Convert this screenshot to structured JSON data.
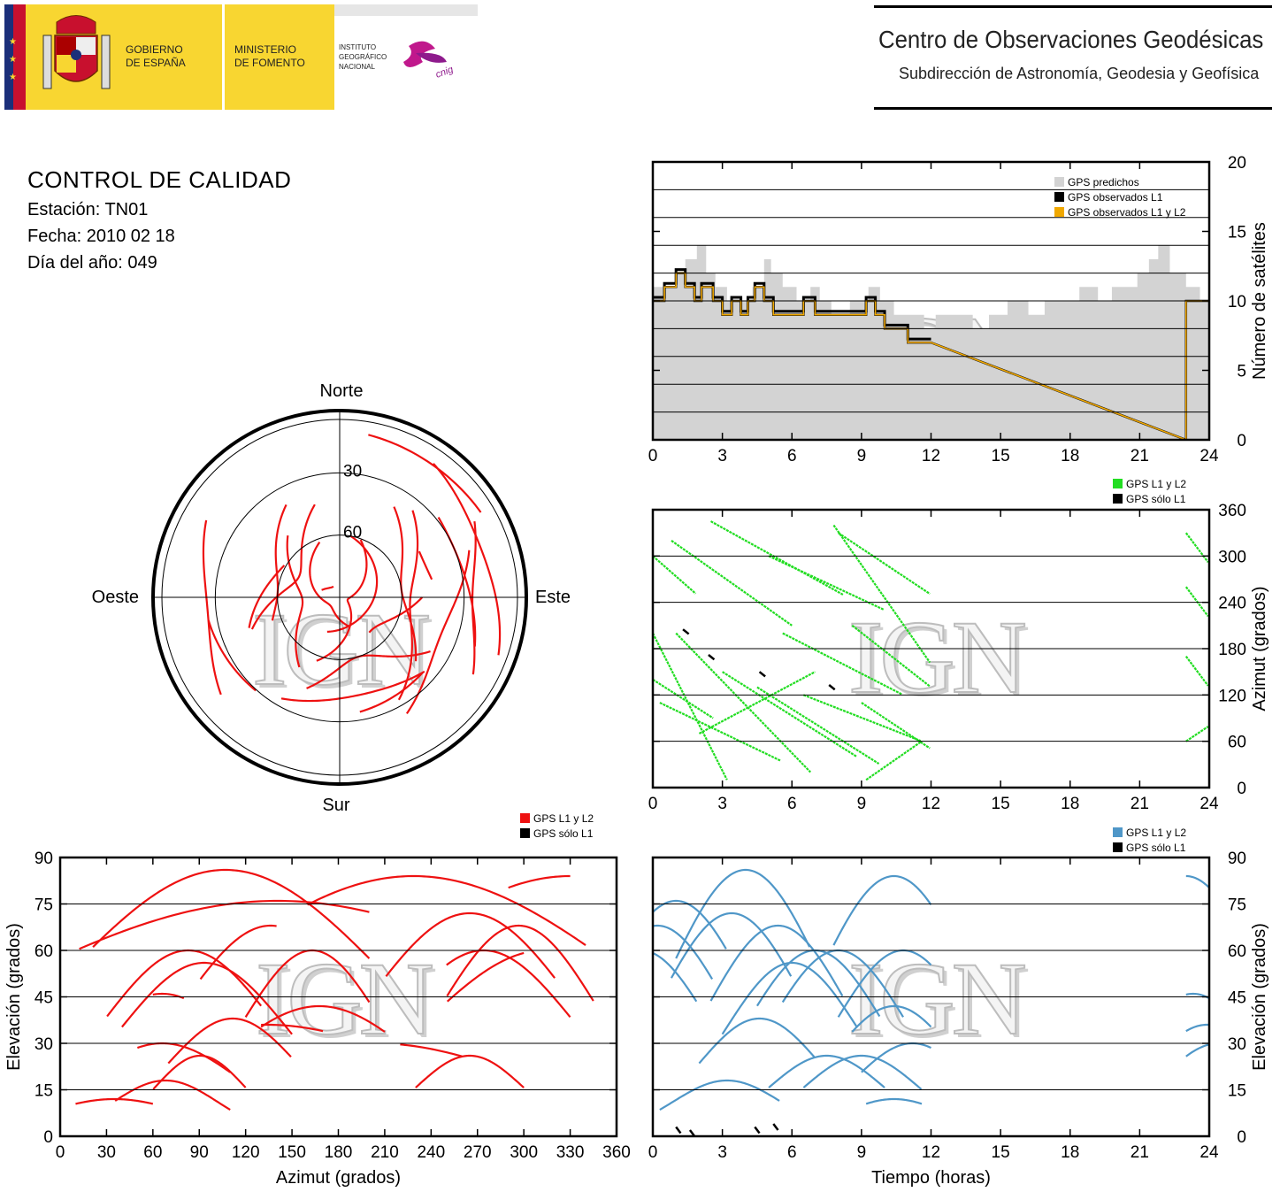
{
  "header": {
    "gov_line1": "GOBIERNO",
    "gov_line2": "DE ESPAÑA",
    "min_line1": "MINISTERIO",
    "min_line2": "DE FOMENTO",
    "ign_line1": "INSTITUTO",
    "ign_line2": "GEOGRÁFICO",
    "ign_line3": "NACIONAL",
    "cnig": "cnig",
    "centro_title": "Centro de Observaciones Geodésicas",
    "centro_subtitle": "Subdirección de Astronomía, Geodesia y Geofísica"
  },
  "info": {
    "title": "CONTROL DE CALIDAD",
    "station": "Estación: TN01",
    "date": "Fecha: 2010 02 18",
    "doy": "Día del año: 049"
  },
  "watermark": "IGN",
  "colors": {
    "yellow": "#f8d631",
    "red_track": "#ee1111",
    "green_track": "#22dd22",
    "blue_track": "#4f97c8",
    "predicted_gray": "#d3d3d3",
    "orange": "#f0a800"
  },
  "chart_data": [
    {
      "id": "sat-count",
      "type": "area",
      "ylabel": "Número de satélites",
      "xlim": [
        0,
        24
      ],
      "ylim": [
        0,
        20
      ],
      "xticks": [
        0,
        3,
        6,
        9,
        12,
        15,
        18,
        21,
        24
      ],
      "yticks": [
        0,
        5,
        10,
        15,
        20
      ],
      "grid": true,
      "legend": [
        "GPS predichos",
        "GPS observados L1",
        "GPS observados L1 y L2"
      ],
      "legend_position": "top-right",
      "predicted": {
        "x": [
          0,
          1,
          1.4,
          1.9,
          2.3,
          2.7,
          3.2,
          4.1,
          4.3,
          4.8,
          5.1,
          5.6,
          6.2,
          6.8,
          7.2,
          7.7,
          8.5,
          9.3,
          9.8,
          10.4,
          11.1,
          11.7,
          12.2,
          13.1,
          13.8,
          14.5,
          15.3,
          16.2,
          16.9,
          17.7,
          18.4,
          19.2,
          19.8,
          20.4,
          20.9,
          21.4,
          21.8,
          22.3,
          23.0,
          23.6,
          24.0
        ],
        "y": [
          11,
          12,
          13,
          14,
          12,
          11,
          10,
          10,
          11,
          13,
          12,
          11,
          10,
          11,
          10,
          9,
          10,
          11,
          10,
          9,
          9,
          8,
          9,
          9,
          8,
          9,
          10,
          9,
          10,
          10,
          11,
          10,
          11,
          11,
          12,
          13,
          14,
          12,
          11,
          10,
          10
        ]
      },
      "observed_L1L2": {
        "x": [
          0,
          0.5,
          1.0,
          1.4,
          1.8,
          2.1,
          2.6,
          3.0,
          3.4,
          3.8,
          4.1,
          4.4,
          4.8,
          5.2,
          5.6,
          6.0,
          6.5,
          7.0,
          7.6,
          8.2,
          8.8,
          9.2,
          9.6,
          10.0,
          10.5,
          11.0,
          11.5,
          12.0,
          23.0,
          23.0,
          24.0
        ],
        "y": [
          10,
          11,
          12,
          11,
          10,
          11,
          10,
          9,
          10,
          9,
          10,
          11,
          10,
          9,
          9,
          9,
          10,
          9,
          9,
          9,
          9,
          10,
          9,
          8,
          8,
          7,
          7,
          7,
          0,
          10,
          10
        ]
      }
    },
    {
      "id": "sky-plot",
      "type": "scatter",
      "projection": "polar",
      "direction_labels": {
        "north": "Norte",
        "south": "Sur",
        "east": "Este",
        "west": "Oeste"
      },
      "elevation_rings": [
        30,
        60
      ],
      "legend": [
        "GPS L1 y L2",
        "GPS sólo L1"
      ],
      "legend_position": "bottom-right"
    },
    {
      "id": "azimuth-time",
      "type": "scatter",
      "ylabel": "Azimut (grados)",
      "xlim": [
        0,
        24
      ],
      "ylim": [
        0,
        360
      ],
      "xticks": [
        0,
        3,
        6,
        9,
        12,
        15,
        18,
        21,
        24
      ],
      "yticks": [
        0,
        60,
        120,
        180,
        240,
        300,
        360
      ],
      "grid": true,
      "legend": [
        "GPS L1 y L2",
        "GPS sólo L1"
      ],
      "legend_position": "top-right"
    },
    {
      "id": "elev-azimuth",
      "type": "scatter",
      "xlabel": "Azimut (grados)",
      "ylabel": "Elevación (grados)",
      "xlim": [
        0,
        360
      ],
      "ylim": [
        0,
        90
      ],
      "xticks": [
        0,
        30,
        60,
        90,
        120,
        150,
        180,
        210,
        240,
        270,
        300,
        330,
        360
      ],
      "yticks": [
        0,
        15,
        30,
        45,
        60,
        75,
        90
      ],
      "grid": true,
      "legend": [
        "GPS L1 y L2",
        "GPS sólo L1"
      ],
      "legend_position": "top-right"
    },
    {
      "id": "elev-time",
      "type": "scatter",
      "xlabel": "Tiempo (horas)",
      "ylabel": "Elevación (grados)",
      "xlim": [
        0,
        24
      ],
      "ylim": [
        0,
        90
      ],
      "xticks": [
        0,
        3,
        6,
        9,
        12,
        15,
        18,
        21,
        24
      ],
      "yticks": [
        0,
        15,
        30,
        45,
        60,
        75,
        90
      ],
      "grid": true,
      "legend": [
        "GPS L1 y L2",
        "GPS sólo L1"
      ],
      "legend_position": "top-right"
    }
  ],
  "satellites": [
    {
      "start": 0.0,
      "end": 3.2,
      "tmax": 1.0,
      "emax": 76,
      "az0": 200,
      "az1": 10
    },
    {
      "start": 0.0,
      "end": 2.6,
      "tmax": 0.2,
      "emax": 68,
      "az0": 140,
      "az1": 90
    },
    {
      "start": 0.0,
      "end": 1.9,
      "tmax": -0.5,
      "emax": 60,
      "az0": 300,
      "az1": 250
    },
    {
      "start": 0.3,
      "end": 5.5,
      "tmax": 3.2,
      "emax": 18,
      "az0": 110,
      "az1": 35
    },
    {
      "start": 0.8,
      "end": 6.0,
      "tmax": 3.4,
      "emax": 72,
      "az0": 320,
      "az1": 210
    },
    {
      "start": 1.0,
      "end": 6.8,
      "tmax": 4.0,
      "emax": 86,
      "az0": 200,
      "az1": 20
    },
    {
      "start": 2.0,
      "end": 7.0,
      "tmax": 4.6,
      "emax": 38,
      "az0": 70,
      "az1": 150
    },
    {
      "start": 2.5,
      "end": 8.2,
      "tmax": 5.4,
      "emax": 68,
      "az0": 345,
      "az1": 250
    },
    {
      "start": 3.0,
      "end": 8.8,
      "tmax": 6.0,
      "emax": 56,
      "az0": 150,
      "az1": 40
    },
    {
      "start": 4.5,
      "end": 9.8,
      "tmax": 7.0,
      "emax": 60,
      "az0": 130,
      "az1": 30
    },
    {
      "start": 5.0,
      "end": 10.0,
      "tmax": 7.5,
      "emax": 26,
      "az0": 300,
      "az1": 230
    },
    {
      "start": 5.6,
      "end": 10.8,
      "tmax": 8.0,
      "emax": 60,
      "az0": 200,
      "az1": 120
    },
    {
      "start": 6.5,
      "end": 11.6,
      "tmax": 9.0,
      "emax": 26,
      "az0": 120,
      "az1": 60
    },
    {
      "start": 7.8,
      "end": 12.0,
      "tmax": 10.4,
      "emax": 84,
      "az0": 340,
      "az1": 160
    },
    {
      "start": 8.0,
      "end": 12.0,
      "tmax": 10.8,
      "emax": 60,
      "az0": 330,
      "az1": 250
    },
    {
      "start": 8.6,
      "end": 12.0,
      "tmax": 10.4,
      "emax": 42,
      "az0": 210,
      "az1": 130
    },
    {
      "start": 9.0,
      "end": 12.0,
      "tmax": 11.2,
      "emax": 30,
      "az0": 110,
      "az1": 50
    },
    {
      "start": 9.2,
      "end": 11.6,
      "tmax": 10.4,
      "emax": 12,
      "az0": 10,
      "az1": 60
    },
    {
      "start": 23.0,
      "end": 24.0,
      "tmax": 23.0,
      "emax": 84,
      "az0": 330,
      "az1": 290
    },
    {
      "start": 23.0,
      "end": 24.0,
      "tmax": 23.3,
      "emax": 46,
      "az0": 60,
      "az1": 80
    },
    {
      "start": 23.0,
      "end": 24.0,
      "tmax": 23.9,
      "emax": 36,
      "az0": 170,
      "az1": 130
    },
    {
      "start": 23.0,
      "end": 24.0,
      "tmax": 24.4,
      "emax": 30,
      "az0": 260,
      "az1": 220
    }
  ]
}
